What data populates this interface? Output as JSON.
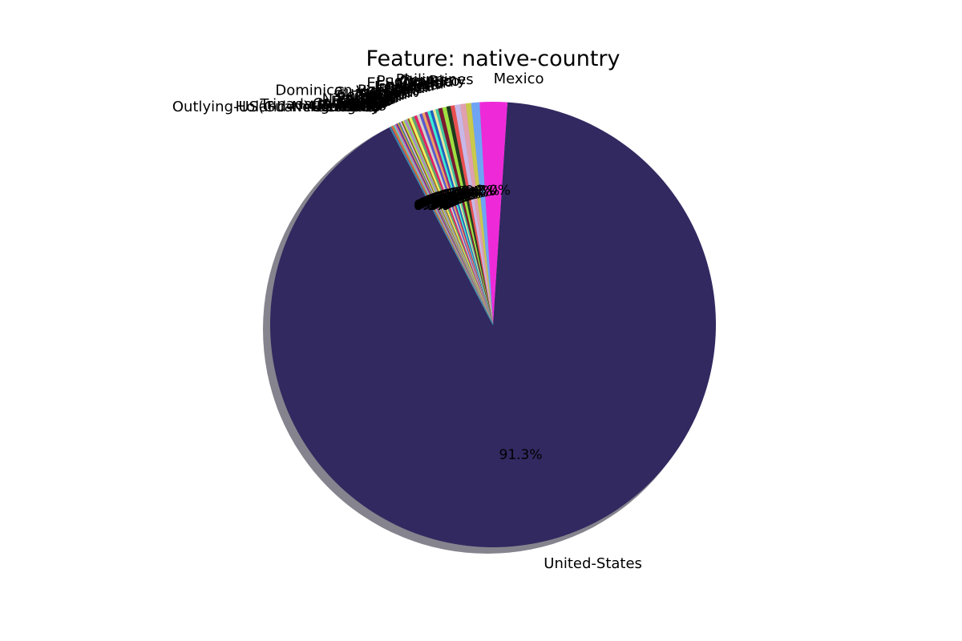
{
  "chart_data": {
    "type": "pie",
    "title": "Feature: native-country",
    "start_angle_deg": 117.6,
    "shadow": true,
    "slices": [
      {
        "label": "United-States",
        "value": 91.3,
        "pct_label": "91.3%",
        "color": "#312960"
      },
      {
        "label": "Mexico",
        "value": 2.0,
        "pct_label": "2.0%",
        "color": "#ee2ad8"
      },
      {
        "label": "Philippines",
        "value": 0.6,
        "pct_label": "0.6%",
        "color": "#6fa4f5"
      },
      {
        "label": "Germany",
        "value": 0.4,
        "pct_label": "0.4%",
        "color": "#c9c94c"
      },
      {
        "label": "Puerto-Rico",
        "value": 0.4,
        "pct_label": "0.4%",
        "color": "#e0a0b0"
      },
      {
        "label": "Canada",
        "value": 0.4,
        "pct_label": "0.4%",
        "color": "#c8b8e8"
      },
      {
        "label": "El-Salvador",
        "value": 0.3,
        "pct_label": "0.3%",
        "color": "#e85050"
      },
      {
        "label": "India",
        "value": 0.3,
        "pct_label": "0.3%",
        "color": "#1e3a1e"
      },
      {
        "label": "Cuba",
        "value": 0.3,
        "pct_label": "0.3%",
        "color": "#a0e040"
      },
      {
        "label": "England",
        "value": 0.3,
        "pct_label": "0.3%",
        "color": "#7a1a30"
      },
      {
        "label": "Jamaica",
        "value": 0.2,
        "pct_label": "0.2%",
        "color": "#40c8a0"
      },
      {
        "label": "South",
        "value": 0.2,
        "pct_label": "0.2%",
        "color": "#e8e8a0"
      },
      {
        "label": "China",
        "value": 0.2,
        "pct_label": "0.2%",
        "color": "#2060c0"
      },
      {
        "label": "Italy",
        "value": 0.2,
        "pct_label": "0.2%",
        "color": "#38f0d8"
      },
      {
        "label": "Dominican-Republic",
        "value": 0.2,
        "pct_label": "0.2%",
        "color": "#a02878"
      },
      {
        "label": "Vietnam",
        "value": 0.2,
        "pct_label": "0.2%",
        "color": "#f0a060"
      },
      {
        "label": "Guatemala",
        "value": 0.2,
        "pct_label": "0.2%",
        "color": "#5858d0"
      },
      {
        "label": "Japan",
        "value": 0.2,
        "pct_label": "0.2%",
        "color": "#d0d0d0"
      },
      {
        "label": "Poland",
        "value": 0.2,
        "pct_label": "0.2%",
        "color": "#e82060"
      },
      {
        "label": "Columbia",
        "value": 0.2,
        "pct_label": "0.2%",
        "color": "#60a070"
      },
      {
        "label": "Taiwan",
        "value": 0.2,
        "pct_label": "0.2%",
        "color": "#f0f060"
      },
      {
        "label": "Haiti",
        "value": 0.1,
        "pct_label": "0.1%",
        "color": "#b04020"
      },
      {
        "label": "Iran",
        "value": 0.1,
        "pct_label": "0.1%",
        "color": "#70e070"
      },
      {
        "label": "Portugal",
        "value": 0.1,
        "pct_label": "0.1%",
        "color": "#c07ad0"
      },
      {
        "label": "Nicaragua",
        "value": 0.1,
        "pct_label": "0.1%",
        "color": "#98a8c0"
      },
      {
        "label": "Peru",
        "value": 0.1,
        "pct_label": "0.1%",
        "color": "#c8e830"
      },
      {
        "label": "France",
        "value": 0.1,
        "pct_label": "0.1%",
        "color": "#805830"
      },
      {
        "label": "Greece",
        "value": 0.1,
        "pct_label": "0.1%",
        "color": "#e8b8e8"
      },
      {
        "label": "Ecuador",
        "value": 0.1,
        "pct_label": "0.1%",
        "color": "#408888"
      },
      {
        "label": "Ireland",
        "value": 0.1,
        "pct_label": "0.1%",
        "color": "#d89838"
      },
      {
        "label": "Hong",
        "value": 0.1,
        "pct_label": "0.1%",
        "color": "#5030a0"
      },
      {
        "label": "Cambodia",
        "value": 0.1,
        "pct_label": "0.1%",
        "color": "#e06090"
      },
      {
        "label": "Trinadad&Tobago",
        "value": 0.1,
        "pct_label": "0.1%",
        "color": "#70c0e8"
      },
      {
        "label": "Laos",
        "value": 0.1,
        "pct_label": "0.1%",
        "color": "#a0a050"
      },
      {
        "label": "Thailand",
        "value": 0.1,
        "pct_label": "0.1%",
        "color": "#e85838"
      },
      {
        "label": "Yugoslavia",
        "value": 0.1,
        "pct_label": "0.1%",
        "color": "#3868a8"
      },
      {
        "label": "Outlying-US(Guam-USVI-etc)",
        "value": 0.0,
        "pct_label": "0.0%",
        "color": "#88d8b0"
      },
      {
        "label": "Hungary",
        "value": 0.0,
        "pct_label": "0.0%",
        "color": "#b858b8"
      },
      {
        "label": "Honduras",
        "value": 0.0,
        "pct_label": "0.0%",
        "color": "#e8c0a0"
      },
      {
        "label": "Scotland",
        "value": 0.0,
        "pct_label": "0.0%",
        "color": "#506830"
      },
      {
        "label": "Holand-Netherlands",
        "value": 0.0,
        "pct_label": "0.0%",
        "color": "#2890c0"
      }
    ]
  }
}
